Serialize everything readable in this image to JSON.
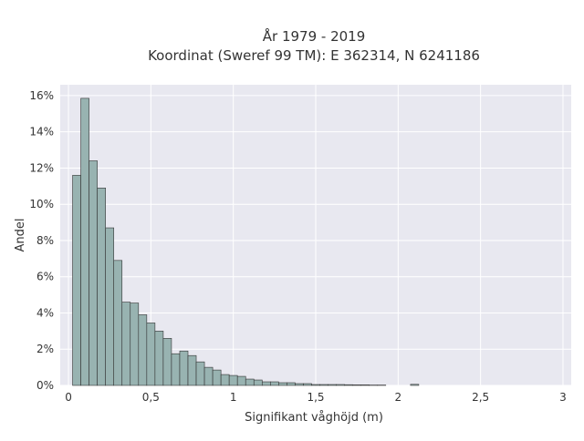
{
  "chart_data": {
    "type": "bar",
    "title": "År 1979 - 2019",
    "subtitle": "Koordinat (Sweref 99 TM): E 362314, N 6241186",
    "xlabel": "Signifikant våghöjd (m)",
    "ylabel": "Andel",
    "bin_width": 0.05,
    "bin_start": 0.025,
    "values": [
      11.6,
      15.85,
      12.4,
      10.9,
      8.7,
      6.9,
      4.6,
      4.55,
      3.9,
      3.45,
      3.0,
      2.6,
      1.75,
      1.9,
      1.65,
      1.3,
      1.0,
      0.85,
      0.6,
      0.55,
      0.5,
      0.35,
      0.3,
      0.2,
      0.2,
      0.15,
      0.15,
      0.1,
      0.1,
      0.05,
      0.05,
      0.05,
      0.05,
      0.04,
      0.03,
      0.03,
      0.02,
      0.02,
      0,
      0,
      0,
      0.06
    ],
    "xlim": [
      -0.05,
      3.05
    ],
    "ylim": [
      0,
      16.6
    ],
    "x_ticks": [
      0,
      0.5,
      1,
      1.5,
      2,
      2.5,
      3
    ],
    "x_tick_labels": [
      "0",
      "0,5",
      "1",
      "1,5",
      "2",
      "2,5",
      "3"
    ],
    "y_ticks": [
      0,
      2,
      4,
      6,
      8,
      10,
      12,
      14,
      16
    ],
    "y_tick_labels": [
      "0%",
      "2%",
      "4%",
      "6%",
      "8%",
      "10%",
      "12%",
      "14%",
      "16%"
    ],
    "grid": true,
    "bar_color": "#98b3b1",
    "bar_edge_color": "#333333",
    "plot_background": "#e8e8f0",
    "grid_color": "#ffffff"
  }
}
